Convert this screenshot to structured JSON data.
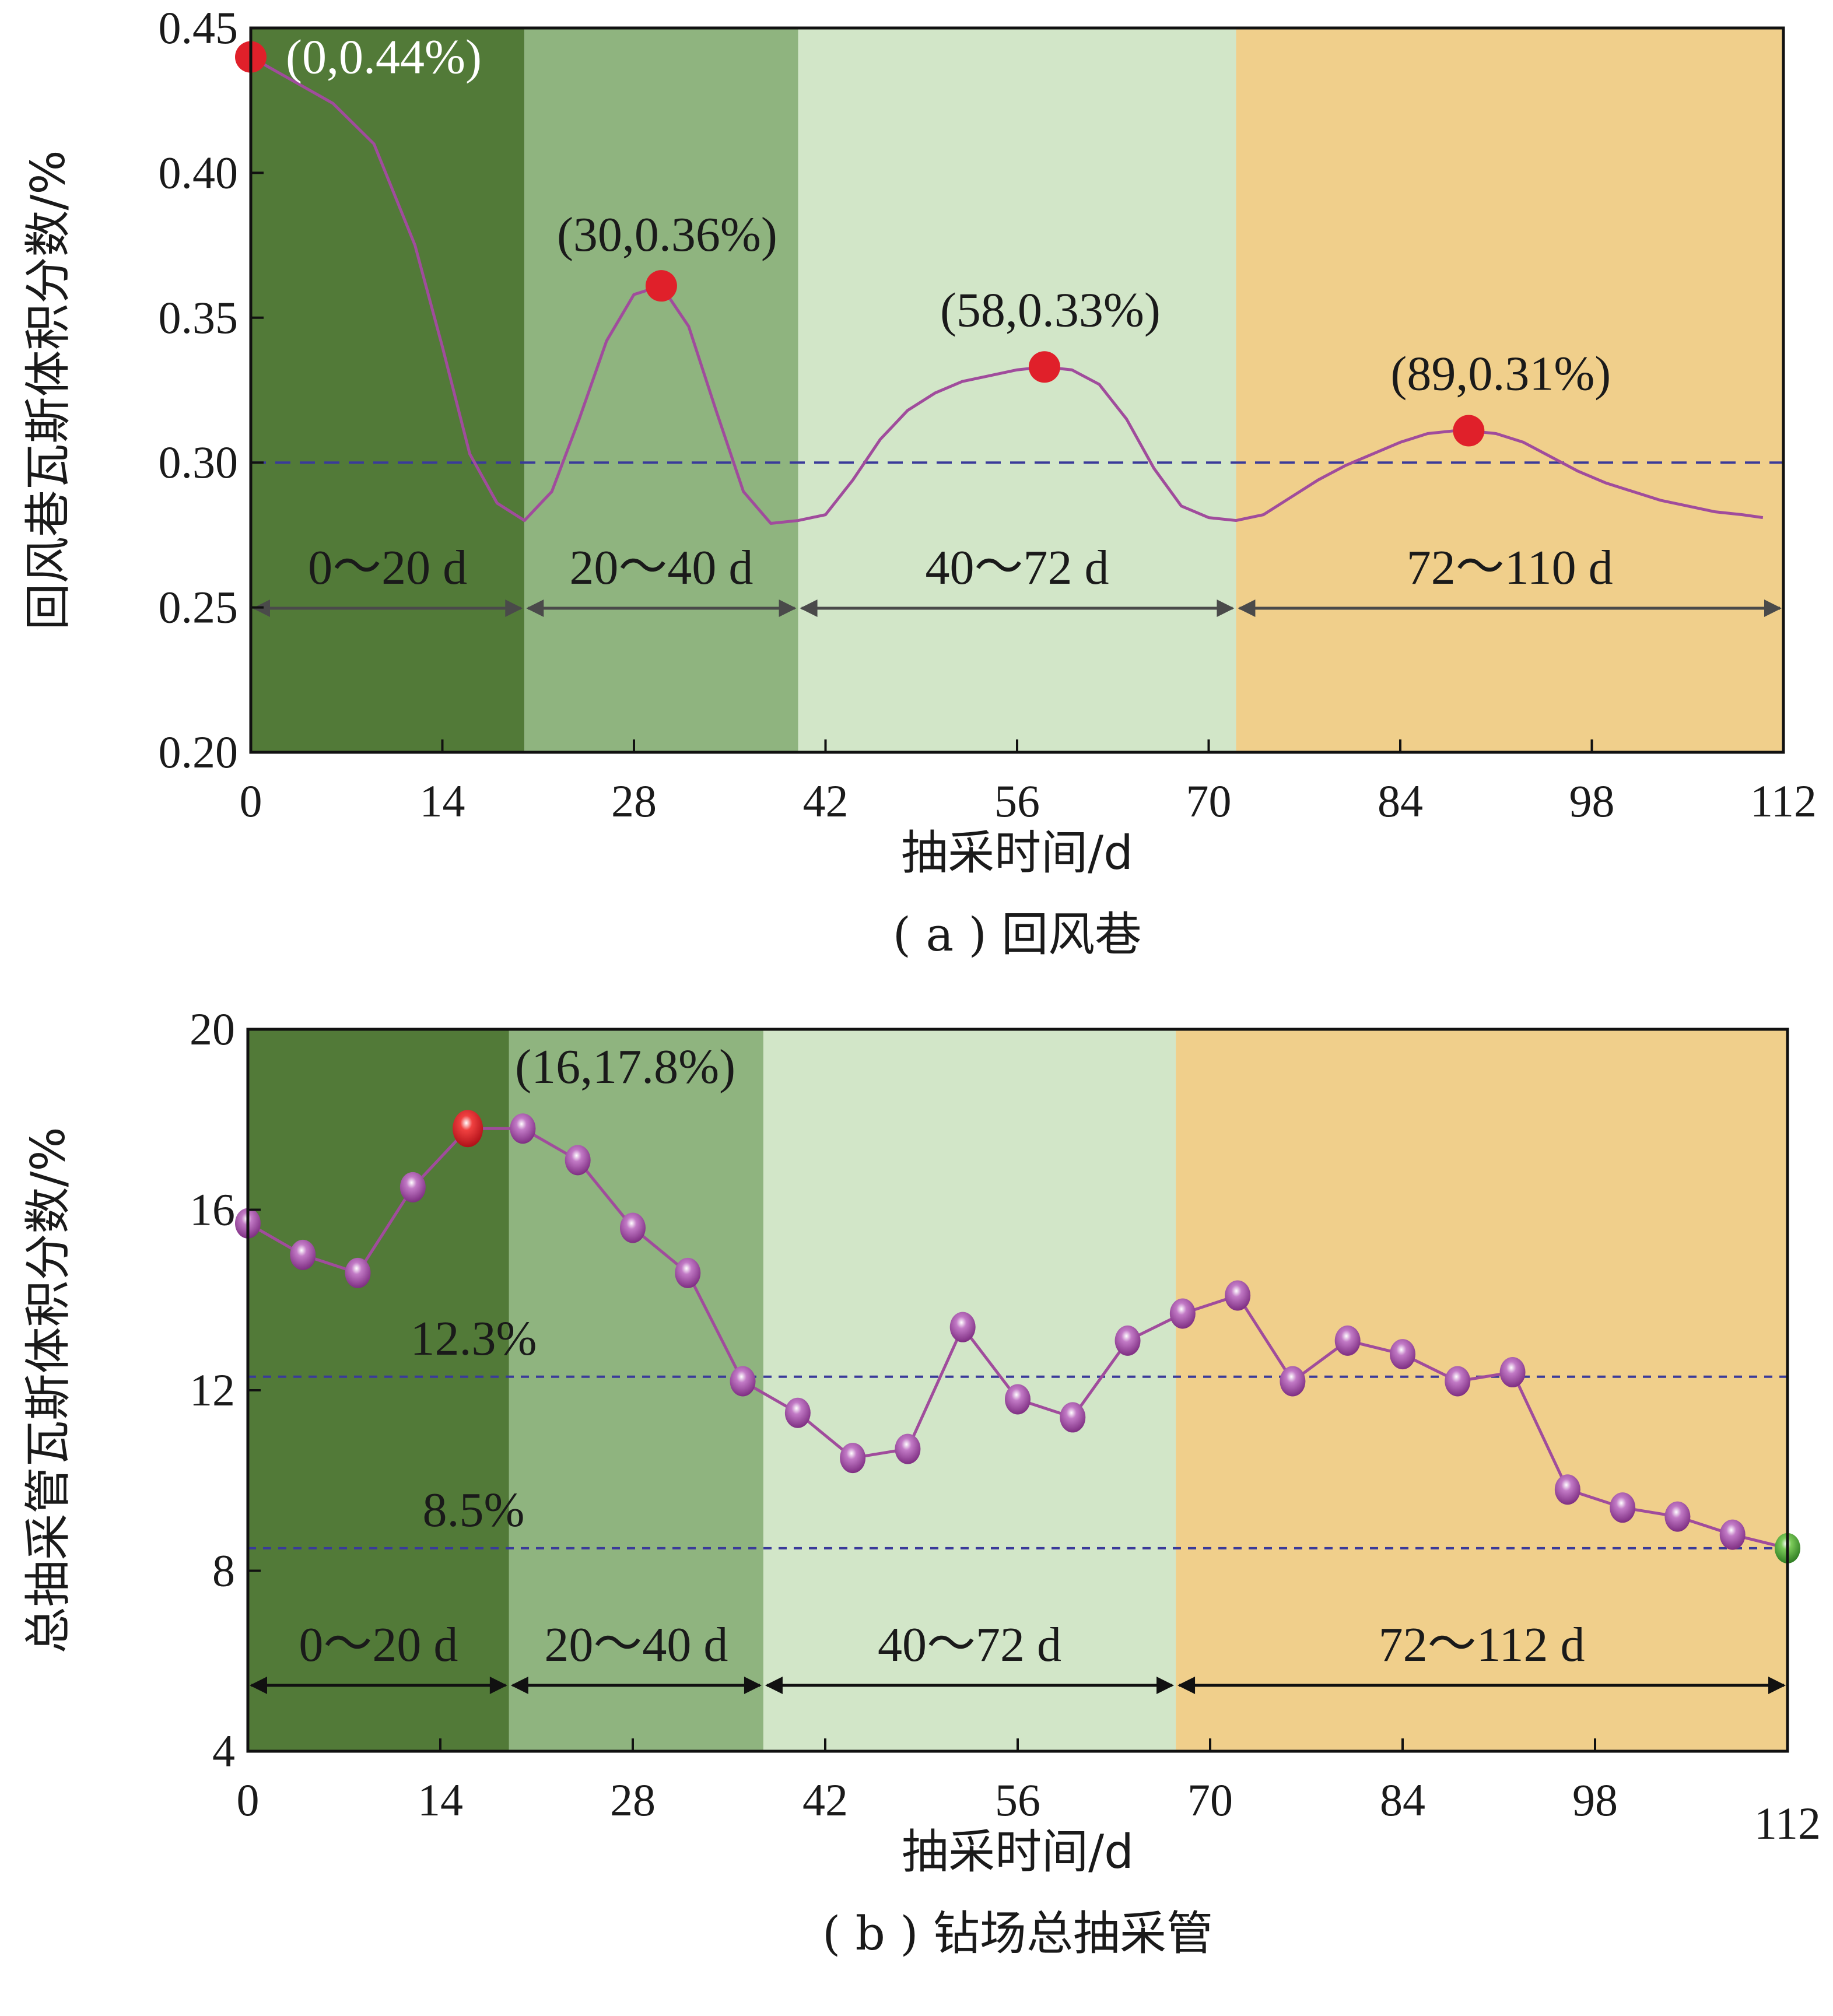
{
  "chart_data": [
    {
      "type": "line",
      "ylabel": "回风巷瓦斯体积分数/%",
      "xlabel": "抽采时间/d",
      "caption": "( a ) 回风巷",
      "xlim": [
        0,
        112
      ],
      "ylim": [
        0.2,
        0.45
      ],
      "xticks": [
        "0",
        "14",
        "28",
        "42",
        "56",
        "70",
        "84",
        "98",
        "112"
      ],
      "yticks": [
        "0.20",
        "0.25",
        "0.30",
        "0.35",
        "0.40",
        "0.45"
      ],
      "grid": false,
      "reference_line": 0.3,
      "colors": {
        "line": "#a04c9c",
        "marker": "#e0202a",
        "ref": "#3a3a9a"
      },
      "stages": [
        {
          "label": "0～20 d",
          "x0": 0,
          "x1": 20,
          "color": "#527a38"
        },
        {
          "label": "20～40 d",
          "x0": 20,
          "x1": 40,
          "color": "#8fb47f"
        },
        {
          "label": "40～72 d",
          "x0": 40,
          "x1": 72,
          "color": "#d2e6c8"
        },
        {
          "label": "72～110 d",
          "x0": 72,
          "x1": 112,
          "color": "#f0cf8b"
        }
      ],
      "series": [
        {
          "x": [
            0,
            3,
            6,
            9,
            12,
            14,
            16,
            18,
            20,
            22,
            24,
            26,
            28,
            30,
            32,
            34,
            36,
            38,
            40,
            42,
            44,
            46,
            48,
            50,
            52,
            54,
            56,
            58,
            60,
            62,
            64,
            66,
            68,
            70,
            72,
            74,
            76,
            78,
            80,
            82,
            84,
            86,
            88,
            89,
            91,
            93,
            95,
            97,
            99,
            101,
            103,
            105,
            107,
            109,
            110.5
          ],
          "y": [
            0.44,
            0.432,
            0.424,
            0.41,
            0.375,
            0.34,
            0.303,
            0.286,
            0.28,
            0.29,
            0.315,
            0.342,
            0.358,
            0.361,
            0.347,
            0.318,
            0.29,
            0.279,
            0.28,
            0.282,
            0.294,
            0.308,
            0.318,
            0.324,
            0.328,
            0.33,
            0.332,
            0.333,
            0.332,
            0.327,
            0.315,
            0.298,
            0.285,
            0.281,
            0.28,
            0.282,
            0.288,
            0.294,
            0.299,
            0.303,
            0.307,
            0.31,
            0.311,
            0.311,
            0.31,
            0.307,
            0.302,
            0.297,
            0.293,
            0.29,
            0.287,
            0.285,
            0.283,
            0.282,
            0.281
          ]
        }
      ],
      "points": [
        {
          "x": 0,
          "y": 0.44,
          "label": "(0,0.44%)"
        },
        {
          "x": 30,
          "y": 0.361,
          "label": "(30,0.36%)"
        },
        {
          "x": 58,
          "y": 0.333,
          "label": "(58,0.33%)"
        },
        {
          "x": 89,
          "y": 0.311,
          "label": "(89,0.31%)"
        }
      ]
    },
    {
      "type": "line",
      "ylabel": "总抽采管瓦斯体积分数/%",
      "xlabel": "抽采时间/d",
      "caption": "( b ) 钻场总抽采管",
      "xlim": [
        0,
        112
      ],
      "ylim": [
        4,
        20
      ],
      "xticks": [
        "0",
        "14",
        "28",
        "42",
        "56",
        "70",
        "84",
        "98",
        "112"
      ],
      "yticks": [
        "4",
        "8",
        "12",
        "16",
        "20"
      ],
      "grid": false,
      "colors": {
        "line": "#a04c9c",
        "marker": "#b052b0",
        "peak": "#e0202a",
        "end": "#4ea63a",
        "ref": "#3a3a9a"
      },
      "reference_lines": [
        {
          "y": 12.3,
          "label": "12.3%"
        },
        {
          "y": 8.5,
          "label": "8.5%"
        }
      ],
      "stages": [
        {
          "label": "0～20 d",
          "x0": 0,
          "x1": 19,
          "color": "#527a38"
        },
        {
          "label": "20～40 d",
          "x0": 19,
          "x1": 37.5,
          "color": "#8fb47f"
        },
        {
          "label": "40～72 d",
          "x0": 37.5,
          "x1": 67.5,
          "color": "#d2e6c8"
        },
        {
          "label": "72～112 d",
          "x0": 67.5,
          "x1": 112,
          "color": "#f0cf8b"
        }
      ],
      "series": [
        {
          "x": [
            0,
            4,
            8,
            12,
            16,
            20,
            24,
            28,
            32,
            36,
            40,
            44,
            48,
            52,
            56,
            60,
            64,
            68,
            72,
            76,
            80,
            84,
            88,
            92,
            96,
            100,
            104,
            108,
            112
          ],
          "y": [
            15.7,
            15.0,
            14.6,
            16.5,
            17.8,
            17.8,
            17.1,
            15.6,
            14.6,
            12.2,
            11.5,
            10.5,
            10.7,
            13.4,
            11.8,
            11.4,
            13.1,
            13.7,
            14.1,
            12.2,
            13.1,
            12.8,
            12.2,
            12.4,
            9.8,
            9.4,
            9.2,
            8.8,
            8.5
          ]
        }
      ],
      "points": [
        {
          "x": 16,
          "y": 17.8,
          "label": "(16,17.8%)"
        }
      ]
    }
  ]
}
